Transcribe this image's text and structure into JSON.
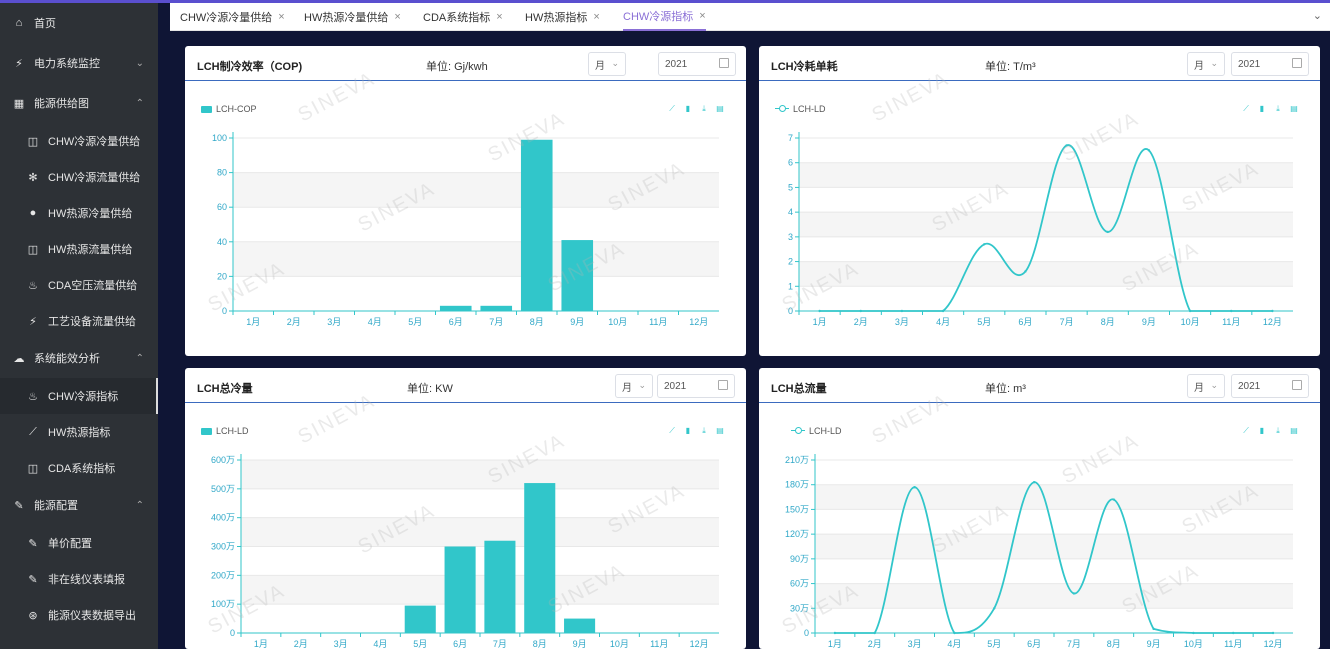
{
  "sidebar": {
    "items": [
      {
        "label": "首页",
        "icon": "home-icon",
        "glyph": "⌂",
        "level": 1,
        "chevron": ""
      },
      {
        "label": "电力系统监控",
        "icon": "lightning-icon",
        "glyph": "⚡",
        "level": 1,
        "chevron": "⌄"
      },
      {
        "label": "能源供给图",
        "icon": "building-icon",
        "glyph": "▦",
        "level": 1,
        "chevron": "⌃"
      },
      {
        "label": "CHW冷源冷量供给",
        "icon": "monitor-icon",
        "glyph": "◫",
        "level": 2,
        "chevron": ""
      },
      {
        "label": "CHW冷源流量供给",
        "icon": "snowflake-icon",
        "glyph": "✻",
        "level": 2,
        "chevron": ""
      },
      {
        "label": "HW热源冷量供给",
        "icon": "drop-icon",
        "glyph": "●",
        "level": 2,
        "chevron": ""
      },
      {
        "label": "HW热源流量供给",
        "icon": "monitor-icon",
        "glyph": "◫",
        "level": 2,
        "chevron": ""
      },
      {
        "label": "CDA空压流量供给",
        "icon": "flame-icon",
        "glyph": "♨",
        "level": 2,
        "chevron": ""
      },
      {
        "label": "工艺设备流量供给",
        "icon": "lightning-icon",
        "glyph": "⚡",
        "level": 2,
        "chevron": ""
      },
      {
        "label": "系统能效分析",
        "icon": "cloud-icon",
        "glyph": "☁",
        "level": 1,
        "chevron": "⌃"
      },
      {
        "label": "CHW冷源指标",
        "icon": "flame-icon",
        "glyph": "♨",
        "level": 2,
        "chevron": "",
        "active": true
      },
      {
        "label": "HW热源指标",
        "icon": "line-chart-icon",
        "glyph": "⟋",
        "level": 2,
        "chevron": ""
      },
      {
        "label": "CDA系统指标",
        "icon": "monitor-icon",
        "glyph": "◫",
        "level": 2,
        "chevron": ""
      },
      {
        "label": "能源配置",
        "icon": "edit-icon",
        "glyph": "✎",
        "level": 1,
        "chevron": "⌃"
      },
      {
        "label": "单价配置",
        "icon": "edit-icon",
        "glyph": "✎",
        "level": 2,
        "chevron": ""
      },
      {
        "label": "非在线仪表填报",
        "icon": "edit-icon",
        "glyph": "✎",
        "level": 2,
        "chevron": ""
      },
      {
        "label": "能源仪表数据导出",
        "icon": "export-icon",
        "glyph": "⊛",
        "level": 2,
        "chevron": ""
      }
    ]
  },
  "tabs": [
    {
      "label": "CHW冷源冷量供给",
      "close": "×"
    },
    {
      "label": "HW热源冷量供给",
      "close": "×"
    },
    {
      "label": "CDA系统指标",
      "close": "×"
    },
    {
      "label": "HW热源指标",
      "close": "×"
    },
    {
      "label": "CHW冷源指标",
      "close": "×",
      "active": true
    }
  ],
  "tab_more": "⌄",
  "watermark": "SINEVA",
  "colors": {
    "series": "#31c6ca",
    "accent": "#8a6fd6",
    "header_line": "#3b6bbf",
    "sidebar": "#2d3136",
    "background": "#0f1535"
  },
  "panels": [
    {
      "title": "LCH制冷效率（COP)",
      "unit": "单位:  Gj/kwh",
      "period": "月",
      "year": "2021",
      "legend": "LCH-COP",
      "tools": [
        "line-icon",
        "bar-icon",
        "download-icon",
        "data-view-icon"
      ]
    },
    {
      "title": "LCH冷耗单耗",
      "unit": "单位:  T/m³",
      "period": "月",
      "year": "2021",
      "legend": "LCH-LD",
      "tools": [
        "line-icon",
        "bar-icon",
        "download-icon",
        "data-view-icon"
      ]
    },
    {
      "title": "LCH总冷量",
      "unit": "单位:  KW",
      "period": "月",
      "year": "2021",
      "legend": "LCH-LD",
      "tools": [
        "line-icon",
        "bar-icon",
        "download-icon",
        "data-view-icon"
      ]
    },
    {
      "title": "LCH总流量",
      "unit": "单位:  m³",
      "period": "月",
      "year": "2021",
      "legend": "LCH-LD",
      "tools": [
        "line-icon",
        "bar-icon",
        "download-icon",
        "data-view-icon"
      ]
    }
  ],
  "chart_data": [
    {
      "type": "bar",
      "categories": [
        "1月",
        "2月",
        "3月",
        "4月",
        "5月",
        "6月",
        "7月",
        "8月",
        "9月",
        "10月",
        "11月",
        "12月"
      ],
      "series": [
        {
          "name": "LCH-COP",
          "values": [
            0,
            0,
            0,
            0,
            0,
            3,
            3,
            99,
            41,
            0,
            0,
            0
          ]
        }
      ],
      "ylim": [
        0,
        100
      ],
      "yticks": [
        0,
        20,
        40,
        60,
        80,
        100
      ],
      "ytick_labels": [
        "0",
        "20",
        "40",
        "60",
        "80",
        "100"
      ],
      "legend": "top-left",
      "grid": true
    },
    {
      "type": "line",
      "smooth": true,
      "categories": [
        "1月",
        "2月",
        "3月",
        "4月",
        "5月",
        "6月",
        "7月",
        "8月",
        "9月",
        "10月",
        "11月",
        "12月"
      ],
      "series": [
        {
          "name": "LCH-LD",
          "values": [
            0,
            0,
            0,
            0,
            2.7,
            1.6,
            6.7,
            3.2,
            6.5,
            0,
            0,
            0
          ]
        }
      ],
      "ylim": [
        0,
        7
      ],
      "yticks": [
        0,
        1,
        2,
        3,
        4,
        5,
        6,
        7
      ],
      "ytick_labels": [
        "0",
        "1",
        "2",
        "3",
        "4",
        "5",
        "6",
        "7"
      ],
      "legend": "top-left",
      "grid": true
    },
    {
      "type": "bar",
      "categories": [
        "1月",
        "2月",
        "3月",
        "4月",
        "5月",
        "6月",
        "7月",
        "8月",
        "9月",
        "10月",
        "11月",
        "12月"
      ],
      "series": [
        {
          "name": "LCH-LD",
          "values": [
            0,
            0,
            0,
            0,
            950000,
            3000000,
            3200000,
            5200000,
            500000,
            0,
            0,
            0
          ]
        }
      ],
      "ylim": [
        0,
        6000000
      ],
      "yticks": [
        0,
        1000000,
        2000000,
        3000000,
        4000000,
        5000000,
        6000000
      ],
      "ytick_labels": [
        "0",
        "100万",
        "200万",
        "300万",
        "400万",
        "500万",
        "600万"
      ],
      "legend": "top-left",
      "grid": true
    },
    {
      "type": "line",
      "smooth": true,
      "categories": [
        "1月",
        "2月",
        "3月",
        "4月",
        "5月",
        "6月",
        "7月",
        "8月",
        "9月",
        "10月",
        "11月",
        "12月"
      ],
      "series": [
        {
          "name": "LCH-LD",
          "values": [
            0,
            0,
            1770000,
            0,
            300000,
            1830000,
            480000,
            1620000,
            50000,
            0,
            0,
            0
          ]
        }
      ],
      "ylim": [
        0,
        2100000
      ],
      "yticks": [
        0,
        300000,
        600000,
        900000,
        1200000,
        1500000,
        1800000,
        2100000
      ],
      "ytick_labels": [
        "0",
        "30万",
        "60万",
        "90万",
        "120万",
        "150万",
        "180万",
        "210万"
      ],
      "legend": "top-left",
      "grid": true
    }
  ]
}
